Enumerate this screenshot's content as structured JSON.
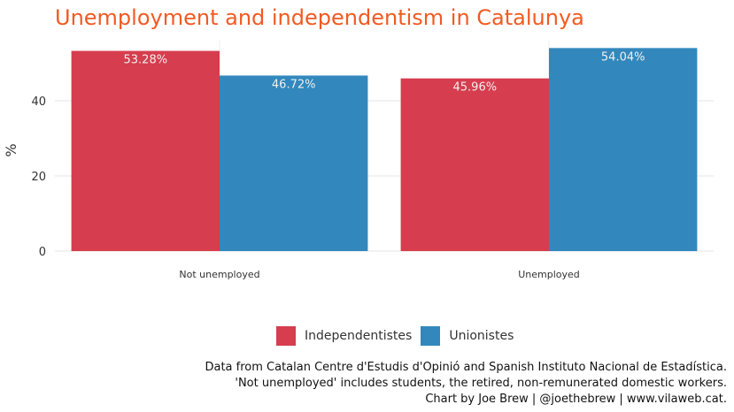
{
  "chart_data": {
    "type": "bar",
    "title": "Unemployment and independentism in Catalunya",
    "ylabel": "%",
    "categories": [
      "Not unemployed",
      "Unemployed"
    ],
    "series": [
      {
        "name": "Independentistes",
        "values": [
          53.28,
          45.96
        ],
        "labels": [
          "53.28%",
          "45.96%"
        ],
        "color": "#d63d4e"
      },
      {
        "name": "Unionistes",
        "values": [
          46.72,
          54.04
        ],
        "labels": [
          "46.72%",
          "54.04%"
        ],
        "color": "#3288bd"
      }
    ],
    "yticks": [
      0,
      20,
      40
    ],
    "ylim": [
      0,
      56
    ],
    "grid": true,
    "legend_position": "bottom"
  },
  "caption": {
    "line1": "Data from Catalan Centre d'Estudis d'Opinió and Spanish Instituto Nacional de Estadística.",
    "line2": "'Not unemployed' includes students, the retired, non-remunerated domestic workers.",
    "line3": "Chart by Joe Brew | @joethebrew | www.vilaweb.cat."
  }
}
